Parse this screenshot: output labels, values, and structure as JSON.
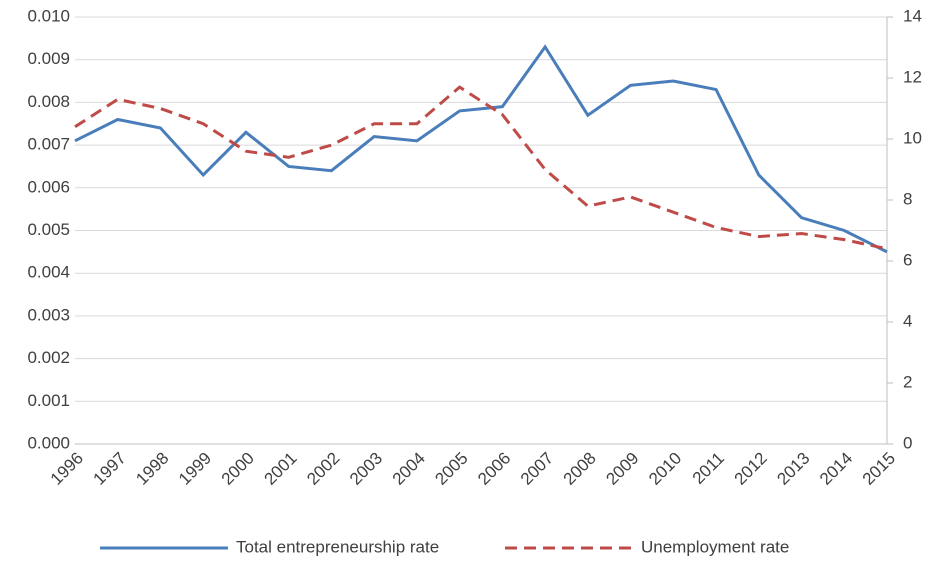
{
  "chart_data": {
    "type": "line",
    "categories": [
      "1996",
      "1997",
      "1998",
      "1999",
      "2000",
      "2001",
      "2002",
      "2003",
      "2004",
      "2005",
      "2006",
      "2007",
      "2008",
      "2009",
      "2010",
      "2011",
      "2012",
      "2013",
      "2014",
      "2015"
    ],
    "series": [
      {
        "name": "Total entrepreneurship rate",
        "color": "#4a7ebb",
        "dash": false,
        "values": [
          0.0071,
          0.0076,
          0.0074,
          0.0063,
          0.0073,
          0.0065,
          0.0064,
          0.0072,
          0.0071,
          0.0078,
          0.0079,
          0.0093,
          0.0077,
          0.0084,
          0.0085,
          0.0083,
          0.0063,
          0.0053,
          0.005,
          0.0045
        ]
      },
      {
        "name": "Unemployment rate",
        "color": "#be4b48",
        "dash": true,
        "axis": "y2",
        "values": [
          10.4,
          11.3,
          11.0,
          10.5,
          9.6,
          9.4,
          9.8,
          10.5,
          10.5,
          11.7,
          10.8,
          9.0,
          7.8,
          8.1,
          7.6,
          7.1,
          6.8,
          6.9,
          6.7,
          6.4
        ]
      }
    ],
    "ylim": [
      0,
      0.01
    ],
    "yticks": [
      {
        "value": 0,
        "label": "0.000"
      },
      {
        "value": 0.001,
        "label": "0.001"
      },
      {
        "value": 0.002,
        "label": "0.002"
      },
      {
        "value": 0.003,
        "label": "0.003"
      },
      {
        "value": 0.004,
        "label": "0.004"
      },
      {
        "value": 0.005,
        "label": "0.005"
      },
      {
        "value": 0.006,
        "label": "0.006"
      },
      {
        "value": 0.007,
        "label": "0.007"
      },
      {
        "value": 0.008,
        "label": "0.008"
      },
      {
        "value": 0.009,
        "label": "0.009"
      },
      {
        "value": 0.01,
        "label": "0.010"
      }
    ],
    "y2lim": [
      0,
      14
    ],
    "y2ticks": [
      0,
      2,
      4,
      6,
      8,
      10,
      12,
      14
    ],
    "grid": true,
    "legend": "bottom"
  }
}
